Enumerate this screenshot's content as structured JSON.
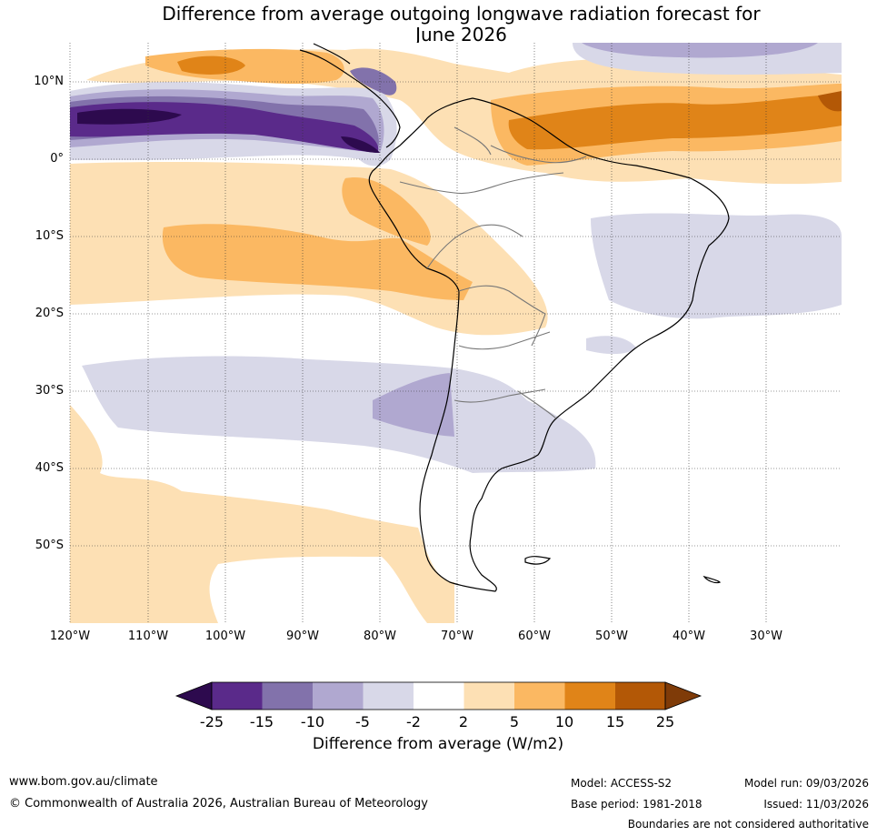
{
  "title": {
    "line1": "Difference from average outgoing longwave radiation forecast for",
    "line2": "June 2026"
  },
  "map": {
    "lat_labels": [
      "10°N",
      "0°",
      "10°S",
      "20°S",
      "30°S",
      "40°S",
      "50°S"
    ],
    "lon_labels": [
      "120°W",
      "110°W",
      "100°W",
      "90°W",
      "80°W",
      "70°W",
      "60°W",
      "50°W",
      "40°W",
      "30°W"
    ]
  },
  "colorbar": {
    "ticks": [
      "-25",
      "-15",
      "-10",
      "-5",
      "-2",
      "2",
      "5",
      "10",
      "15",
      "25"
    ],
    "colors": [
      "#2d0a4e",
      "#5a2a8a",
      "#8272ab",
      "#b0a8d0",
      "#d8d8e8",
      "#ffffff",
      "#fde0b4",
      "#fbb862",
      "#e08418",
      "#b35806",
      "#7f3b08"
    ],
    "label": "Difference from average (W/m2)"
  },
  "footer": {
    "website": "www.bom.gov.au/climate",
    "copyright": "© Commonwealth of Australia 2026, Australian Bureau of Meteorology",
    "model": "Model: ACCESS-S2",
    "base_period": "Base period: 1981-2018",
    "model_run": "Model run: 09/03/2026",
    "issued": "Issued: 11/03/2026",
    "disclaimer": "Boundaries are not considered authoritative"
  }
}
